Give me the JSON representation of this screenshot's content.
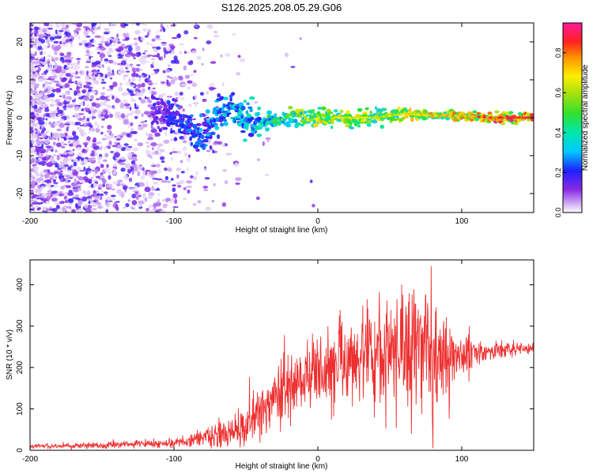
{
  "title": "S126.2025.208.05.29.G06",
  "chart_data": [
    {
      "type": "heatmap",
      "xlabel": "Height of straight line (km)",
      "ylabel": "Frequency (Hz)",
      "xlim": [
        -200,
        150
      ],
      "ylim": [
        -25,
        25
      ],
      "xticks": [
        -200,
        -100,
        0,
        100
      ],
      "yticks": [
        -20,
        -10,
        0,
        10,
        20
      ],
      "colorbar": {
        "label": "Normalized spectral amplitude",
        "range": [
          0,
          0.95
        ],
        "ticks": [
          0.0,
          0.2,
          0.4,
          0.6,
          0.8
        ],
        "colormap": "rainbow (white-violet-blue-cyan-green-yellow-red-magenta)"
      },
      "ridge": {
        "description_points": [
          [
            -110,
            2
          ],
          [
            -100,
            0
          ],
          [
            -90,
            -3
          ],
          [
            -80,
            -6
          ],
          [
            -70,
            1.5
          ],
          [
            -60,
            2
          ],
          [
            -50,
            0
          ],
          [
            -40,
            -1.5
          ],
          [
            -20,
            0
          ],
          [
            0,
            0
          ],
          [
            20,
            0
          ],
          [
            40,
            0
          ],
          [
            60,
            1
          ],
          [
            80,
            0.5
          ],
          [
            100,
            0.5
          ],
          [
            120,
            0
          ],
          [
            150,
            0
          ]
        ],
        "peak_amplitude_by_x": [
          [
            -200,
            0.1
          ],
          [
            -120,
            0.15
          ],
          [
            -100,
            0.25
          ],
          [
            -70,
            0.35
          ],
          [
            -40,
            0.45
          ],
          [
            0,
            0.75
          ],
          [
            40,
            0.7
          ],
          [
            80,
            0.8
          ],
          [
            120,
            0.95
          ],
          [
            150,
            0.95
          ]
        ]
      },
      "grid": false
    },
    {
      "type": "line",
      "xlabel": "Height of straight line (km)",
      "ylabel": "SNR (10 * v/v)",
      "xlim": [
        -200,
        150
      ],
      "ylim": [
        0,
        460
      ],
      "xticks": [
        -200,
        -100,
        0,
        100
      ],
      "yticks": [
        0,
        100,
        200,
        300,
        400
      ],
      "color": "#ee3030",
      "series": [
        {
          "envelope_mean": [
            [
              -200,
              10
            ],
            [
              -150,
              12
            ],
            [
              -100,
              18
            ],
            [
              -80,
              30
            ],
            [
              -60,
              40
            ],
            [
              -50,
              60
            ],
            [
              -40,
              90
            ],
            [
              -30,
              130
            ],
            [
              -20,
              160
            ],
            [
              -10,
              180
            ],
            [
              0,
              190
            ],
            [
              10,
              210
            ],
            [
              20,
              220
            ],
            [
              30,
              225
            ],
            [
              40,
              230
            ],
            [
              50,
              235
            ],
            [
              60,
              240
            ],
            [
              70,
              245
            ],
            [
              80,
              240
            ],
            [
              90,
              230
            ],
            [
              100,
              225
            ],
            [
              110,
              235
            ],
            [
              120,
              240
            ],
            [
              130,
              240
            ],
            [
              140,
              245
            ],
            [
              150,
              245
            ]
          ],
          "noise_amplitude": [
            [
              -200,
              5
            ],
            [
              -100,
              10
            ],
            [
              -70,
              30
            ],
            [
              -40,
              60
            ],
            [
              0,
              80
            ],
            [
              30,
              110
            ],
            [
              60,
              130
            ],
            [
              80,
              140
            ],
            [
              100,
              60
            ],
            [
              115,
              20
            ],
            [
              150,
              15
            ]
          ],
          "notable_peaks": [
            [
              80,
              460
            ],
            [
              55,
              365
            ],
            [
              75,
              375
            ]
          ],
          "notable_dips": [
            [
              80,
              5
            ],
            [
              65,
              40
            ]
          ]
        }
      ],
      "grid": false
    }
  ]
}
